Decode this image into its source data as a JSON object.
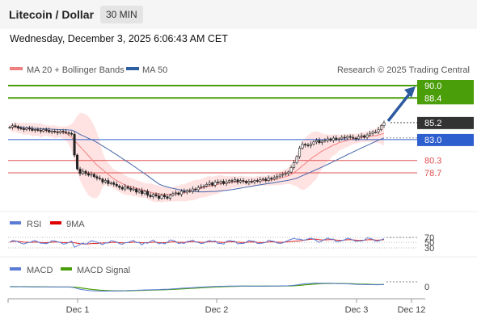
{
  "header": {
    "title": "Litecoin / Dollar",
    "timeframe": "30 MIN"
  },
  "date_line": "Wednesday, December 3, 2025 6:06:43 AM CET",
  "legend": {
    "ma20": "MA 20 + Bollinger Bands",
    "ma50": "MA 50",
    "research": "Research © 2025 Trading Central"
  },
  "rsi_panel": {
    "rsi": "RSI",
    "ma": "9MA"
  },
  "macd_panel": {
    "macd": "MACD",
    "signal": "MACD Signal"
  },
  "colors": {
    "green": "#4a9e0a",
    "blue": "#2e5fcf",
    "red": "#e05050",
    "dark": "#333333",
    "bollinger": "#ffdada",
    "ma20": "#f08080",
    "ma50": "#4466aa",
    "arrow": "#2c5aa0"
  },
  "chart_data": {
    "type": "candlestick",
    "x_ticks": [
      "Dec 1",
      "Dec 2",
      "Dec 3",
      "Dec 12"
    ],
    "price_levels": [
      {
        "value": 90.0,
        "label": "90.0",
        "kind": "target"
      },
      {
        "value": 88.4,
        "label": "88.4",
        "kind": "target"
      },
      {
        "value": 85.2,
        "label": "85.2",
        "kind": "last"
      },
      {
        "value": 83.0,
        "label": "83.0",
        "kind": "pivot"
      },
      {
        "value": 80.3,
        "label": "80.3",
        "kind": "support"
      },
      {
        "value": 78.7,
        "label": "78.7",
        "kind": "support"
      }
    ],
    "price_range": [
      73.5,
      90.5
    ],
    "close_series": [
      84.6,
      84.8,
      84.7,
      84.5,
      84.4,
      84.3,
      84.5,
      84.4,
      84.2,
      84.3,
      84.2,
      84.1,
      84.3,
      84.2,
      84.0,
      84.1,
      84.0,
      83.9,
      84.1,
      84.0,
      83.9,
      83.8,
      83.7,
      81.0,
      79.2,
      78.6,
      78.9,
      78.6,
      78.4,
      78.5,
      78.2,
      78.0,
      77.9,
      77.5,
      77.7,
      77.3,
      77.4,
      77.2,
      77.0,
      76.8,
      76.6,
      76.9,
      76.7,
      76.5,
      76.6,
      76.2,
      76.4,
      76.0,
      76.3,
      75.8,
      75.6,
      75.9,
      75.7,
      75.4,
      75.8,
      75.6,
      75.4,
      75.8,
      76.0,
      76.1,
      75.9,
      76.3,
      76.2,
      76.4,
      76.3,
      76.6,
      76.5,
      76.8,
      76.9,
      77.0,
      77.2,
      77.4,
      77.1,
      77.5,
      77.4,
      77.6,
      77.3,
      77.5,
      77.7,
      77.6,
      77.8,
      77.5,
      77.7,
      77.6,
      77.4,
      77.6,
      77.5,
      77.7,
      77.6,
      77.8,
      77.9,
      77.7,
      78.0,
      77.9,
      78.1,
      78.2,
      78.4,
      78.5,
      78.6,
      78.8,
      79.4,
      80.0,
      80.8,
      81.9,
      82.4,
      82.3,
      82.2,
      82.4,
      82.7,
      82.9,
      82.6,
      82.8,
      82.9,
      83.1,
      82.9,
      83.2,
      83.0,
      83.1,
      83.3,
      83.2,
      83.4,
      83.3,
      83.2,
      83.1,
      83.4,
      83.5,
      83.3,
      83.6,
      83.8,
      84.0,
      84.0,
      84.3,
      84.8,
      85.2
    ],
    "ma20_series": [
      84.6,
      84.6,
      84.6,
      84.5,
      84.5,
      84.4,
      84.4,
      84.4,
      84.3,
      84.3,
      84.3,
      84.2,
      84.2,
      84.2,
      84.1,
      84.1,
      84.0,
      84.0,
      84.0,
      83.9,
      83.8,
      83.6,
      83.3,
      82.9,
      82.5,
      82.1,
      81.7,
      81.3,
      80.9,
      80.5,
      80.1,
      79.7,
      79.4,
      79.1,
      78.8,
      78.5,
      78.2,
      77.9,
      77.7,
      77.5,
      77.3,
      77.1,
      77.0,
      76.9,
      76.8,
      76.7,
      76.6,
      76.5,
      76.4,
      76.3,
      76.2,
      76.1,
      76.0,
      76.0,
      75.9,
      75.9,
      75.9,
      75.9,
      75.9,
      76.0,
      76.0,
      76.1,
      76.1,
      76.2,
      76.3,
      76.4,
      76.5,
      76.6,
      76.7,
      76.8,
      76.9,
      77.0,
      77.0,
      77.1,
      77.2,
      77.3,
      77.3,
      77.4,
      77.4,
      77.5,
      77.5,
      77.5,
      77.6,
      77.6,
      77.6,
      77.6,
      77.6,
      77.6,
      77.7,
      77.7,
      77.7,
      77.7,
      77.7,
      77.8,
      77.8,
      77.9,
      78.0,
      78.1,
      78.2,
      78.3,
      78.5,
      78.7,
      79.0,
      79.3,
      79.6,
      79.9,
      80.2,
      80.5,
      80.8,
      81.0,
      81.3,
      81.5,
      81.7,
      81.9,
      82.1,
      82.3,
      82.4,
      82.6,
      82.7,
      82.8,
      82.9,
      83.0,
      83.1,
      83.1,
      83.2,
      83.3,
      83.3,
      83.4,
      83.4,
      83.5,
      83.5,
      83.6,
      83.7,
      83.8
    ],
    "rsi_scale": [
      70,
      50,
      30
    ],
    "macd_zero_label": "0"
  }
}
